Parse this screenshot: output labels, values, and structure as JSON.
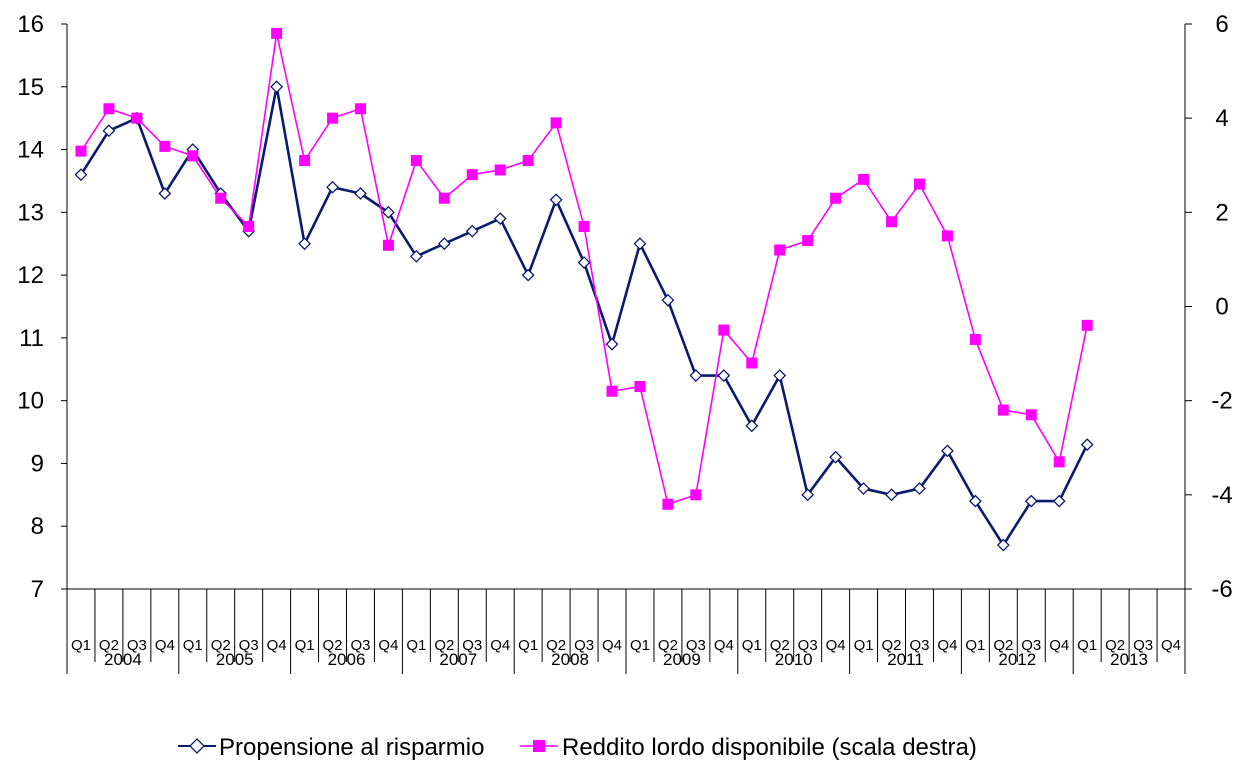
{
  "chart_data": {
    "type": "line",
    "quarters": [
      "Q1",
      "Q2",
      "Q3",
      "Q4"
    ],
    "years": [
      "2004",
      "2005",
      "2006",
      "2007",
      "2008",
      "2009",
      "2010",
      "2011",
      "2012",
      "2013"
    ],
    "x": [
      "2004 Q1",
      "2004 Q2",
      "2004 Q3",
      "2004 Q4",
      "2005 Q1",
      "2005 Q2",
      "2005 Q3",
      "2005 Q4",
      "2006 Q1",
      "2006 Q2",
      "2006 Q3",
      "2006 Q4",
      "2007 Q1",
      "2007 Q2",
      "2007 Q3",
      "2007 Q4",
      "2008 Q1",
      "2008 Q2",
      "2008 Q3",
      "2008 Q4",
      "2009 Q1",
      "2009 Q2",
      "2009 Q3",
      "2009 Q4",
      "2010 Q1",
      "2010 Q2",
      "2010 Q3",
      "2010 Q4",
      "2011 Q1",
      "2011 Q2",
      "2011 Q3",
      "2011 Q4",
      "2012 Q1",
      "2012 Q2",
      "2012 Q3",
      "2012 Q4",
      "2013 Q1",
      "2013 Q2",
      "2013 Q3",
      "2013 Q4"
    ],
    "left_axis": {
      "ylim": [
        7,
        16
      ],
      "ticks": [
        "7",
        "8",
        "9",
        "10",
        "11",
        "12",
        "13",
        "14",
        "15",
        "16"
      ]
    },
    "right_axis": {
      "ylim": [
        -6,
        6
      ],
      "ticks": [
        "-6",
        "-4",
        "-2",
        "0",
        "2",
        "4",
        "6"
      ]
    },
    "series": [
      {
        "name": "Propensione al risparmio",
        "axis": "left",
        "color": "#0a1a6e",
        "marker": "diamond",
        "values": [
          13.6,
          14.3,
          14.5,
          13.3,
          14.0,
          13.3,
          12.7,
          15.0,
          12.5,
          13.4,
          13.3,
          13.0,
          12.3,
          12.5,
          12.7,
          12.9,
          12.0,
          13.2,
          12.2,
          10.9,
          12.5,
          11.6,
          10.4,
          10.4,
          9.6,
          10.4,
          8.5,
          9.1,
          8.6,
          8.5,
          8.6,
          9.2,
          8.4,
          7.7,
          8.4,
          8.4,
          9.3,
          null,
          null,
          null
        ]
      },
      {
        "name": "Reddito lordo disponibile (scala destra)",
        "axis": "right",
        "color": "#ff00ff",
        "marker": "square",
        "values": [
          3.3,
          4.2,
          4.0,
          3.4,
          3.2,
          2.3,
          1.7,
          5.8,
          3.1,
          4.0,
          4.2,
          1.3,
          3.1,
          2.3,
          2.8,
          2.9,
          3.1,
          3.9,
          1.7,
          -1.8,
          -1.7,
          -4.2,
          -4.0,
          -0.5,
          -1.2,
          1.2,
          1.4,
          2.3,
          2.7,
          1.8,
          2.6,
          1.5,
          -0.7,
          -2.2,
          -2.3,
          -3.3,
          -0.4,
          null,
          null,
          null
        ]
      }
    ],
    "legend_position": "bottom",
    "grid": false
  }
}
